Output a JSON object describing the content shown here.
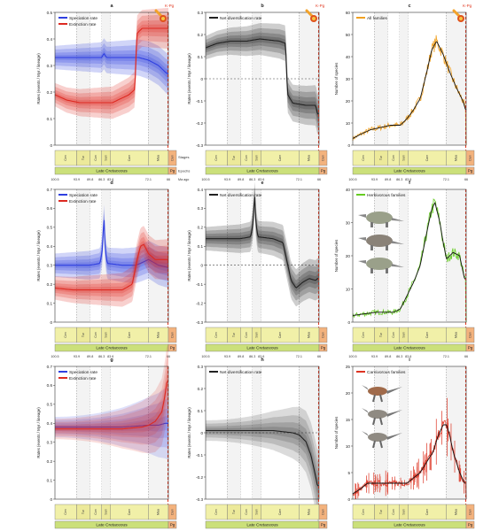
{
  "figure": {
    "period_label": "Late Cretaceous",
    "period_short": "Pg",
    "stages_label": "Stages",
    "epochs_label": "Epochs",
    "ma_label": "Ma ago",
    "kpg_label": "K-Pg",
    "stages": [
      "Cen",
      "Tur",
      "Con",
      "San",
      "Cam",
      "Maa",
      "Dan"
    ],
    "time_ticks": [
      "100.5",
      "93.9",
      "89.8",
      "86.3",
      "83.6",
      "72.1",
      "66"
    ]
  },
  "colors": {
    "speciation": "#2f3fe0",
    "extinction": "#dd2a22",
    "net": "#222222",
    "all": "#f0a020",
    "herbivore": "#66cc22",
    "carnivore": "#dd3322",
    "kpg_line": "#e23b24",
    "stage_fill": "#f1f0a8",
    "stage_fill_alt": "#ece99a",
    "period_fill": "#cbe07a",
    "pg_fill": "#f3b27d"
  },
  "chart_data": [
    {
      "panel": "a",
      "type": "line",
      "xlim": [
        100.5,
        66
      ],
      "ylim": [
        0,
        0.5
      ],
      "yticks": [
        "0",
        "0.1",
        "0.2",
        "0.3",
        "0.4",
        "0.5"
      ],
      "ylabel": "Rates (events / Myr / lineage)",
      "series": [
        {
          "name": "Speciation rate",
          "color_key": "speciation",
          "x": [
            100.5,
            95,
            88,
            86.3,
            85.6,
            84.8,
            80,
            75,
            72,
            69,
            66.5
          ],
          "y": [
            0.33,
            0.33,
            0.33,
            0.33,
            0.345,
            0.33,
            0.33,
            0.33,
            0.32,
            0.3,
            0.27
          ]
        },
        {
          "name": "Extinction rate",
          "color_key": "extinction",
          "x": [
            100.5,
            97,
            93,
            88,
            83,
            78,
            76.2,
            75.6,
            74,
            70,
            66.5
          ],
          "y": [
            0.19,
            0.17,
            0.16,
            0.16,
            0.16,
            0.19,
            0.21,
            0.42,
            0.44,
            0.44,
            0.44
          ]
        }
      ]
    },
    {
      "panel": "b",
      "type": "line",
      "xlim": [
        100.5,
        66
      ],
      "ylim": [
        -0.3,
        0.3
      ],
      "yticks": [
        "-0.3",
        "-0.2",
        "-0.1",
        "0",
        "0.1",
        "0.2",
        "0.3"
      ],
      "ylabel": "Rates (events / Myr / lineage)",
      "series": [
        {
          "name": "Net diversification rate",
          "color_key": "net",
          "x": [
            100.5,
            97,
            93,
            88,
            84,
            78,
            76.2,
            75.6,
            74,
            70,
            67,
            66.5
          ],
          "y": [
            0.14,
            0.16,
            0.17,
            0.17,
            0.18,
            0.17,
            0.16,
            -0.07,
            -0.11,
            -0.12,
            -0.12,
            -0.16
          ]
        }
      ]
    },
    {
      "panel": "c",
      "type": "line",
      "xlim": [
        100.5,
        66
      ],
      "ylim": [
        0,
        60
      ],
      "yticks": [
        "0",
        "10",
        "20",
        "30",
        "40",
        "50",
        "60"
      ],
      "ylabel": "Number of species",
      "series": [
        {
          "name": "All families",
          "color_key": "all",
          "x": [
            100.5,
            98,
            95,
            92,
            89,
            86,
            84,
            82,
            80,
            78,
            76.5,
            75,
            73,
            71,
            69,
            67,
            66.2
          ],
          "y": [
            3,
            5,
            7,
            8,
            9,
            9,
            12,
            16,
            21,
            33,
            43,
            47,
            41,
            33,
            26,
            20,
            16
          ]
        }
      ]
    },
    {
      "panel": "d",
      "type": "line",
      "xlim": [
        100.5,
        66
      ],
      "ylim": [
        0,
        0.7
      ],
      "yticks": [
        "0",
        "0.1",
        "0.2",
        "0.3",
        "0.4",
        "0.5",
        "0.6",
        "0.7"
      ],
      "ylabel": "Rates (events / Myr / lineage)",
      "series": [
        {
          "name": "Speciation rate",
          "color_key": "speciation",
          "x": [
            100.5,
            95,
            90,
            86.8,
            86.1,
            85.6,
            85.2,
            84.6,
            80,
            76,
            74.5,
            72,
            69,
            66.5
          ],
          "y": [
            0.3,
            0.3,
            0.3,
            0.31,
            0.38,
            0.56,
            0.38,
            0.31,
            0.3,
            0.3,
            0.31,
            0.33,
            0.3,
            0.29
          ]
        },
        {
          "name": "Extinction rate",
          "color_key": "extinction",
          "x": [
            100.5,
            95,
            90,
            84,
            80,
            77,
            75.5,
            74.5,
            73.5,
            72,
            70,
            68,
            66.5
          ],
          "y": [
            0.18,
            0.17,
            0.17,
            0.17,
            0.17,
            0.2,
            0.33,
            0.4,
            0.41,
            0.36,
            0.33,
            0.33,
            0.33
          ]
        }
      ]
    },
    {
      "panel": "e",
      "type": "line",
      "xlim": [
        100.5,
        66
      ],
      "ylim": [
        -0.3,
        0.4
      ],
      "yticks": [
        "-0.3",
        "-0.2",
        "-0.1",
        "0",
        "0.1",
        "0.2",
        "0.3",
        "0.4"
      ],
      "ylabel": "Rates (events / Myr / lineage)",
      "series": [
        {
          "name": "Net diversification rate",
          "color_key": "net",
          "x": [
            100.5,
            95,
            90,
            86.8,
            86.1,
            85.6,
            85.2,
            84.6,
            80,
            77,
            75.5,
            74.5,
            73,
            71,
            69,
            67,
            66.5
          ],
          "y": [
            0.14,
            0.14,
            0.14,
            0.15,
            0.22,
            0.38,
            0.22,
            0.15,
            0.14,
            0.12,
            0.0,
            -0.08,
            -0.12,
            -0.09,
            -0.07,
            -0.08,
            -0.07
          ]
        }
      ]
    },
    {
      "panel": "f",
      "type": "line",
      "xlim": [
        100.5,
        66
      ],
      "ylim": [
        0,
        40
      ],
      "yticks": [
        "0",
        "10",
        "20",
        "30",
        "40"
      ],
      "ylabel": "Number of species",
      "series": [
        {
          "name": "Herbivorous families",
          "color_key": "herbivore",
          "x": [
            100.5,
            97,
            93,
            90,
            88,
            86,
            84,
            82,
            80,
            78,
            76.5,
            75.5,
            74,
            73,
            72,
            71,
            70,
            68,
            66.5
          ],
          "y": [
            2,
            2.5,
            3,
            3,
            3,
            4,
            8,
            12,
            17,
            27,
            34,
            36,
            30,
            24,
            19,
            20,
            21,
            20,
            13
          ]
        }
      ]
    },
    {
      "panel": "g",
      "type": "line",
      "xlim": [
        100.5,
        66
      ],
      "ylim": [
        0,
        0.7
      ],
      "yticks": [
        "0",
        "0.1",
        "0.2",
        "0.3",
        "0.4",
        "0.5",
        "0.6",
        "0.7"
      ],
      "ylabel": "Rates (events / Myr / lineage)",
      "series": [
        {
          "name": "Speciation rate",
          "color_key": "speciation",
          "x": [
            100.5,
            90,
            80,
            72,
            69,
            67,
            66.5
          ],
          "y": [
            0.38,
            0.38,
            0.38,
            0.39,
            0.39,
            0.4,
            0.4
          ]
        },
        {
          "name": "Extinction rate",
          "color_key": "extinction",
          "x": [
            100.5,
            90,
            80,
            74,
            72,
            70,
            68,
            67,
            66.5
          ],
          "y": [
            0.37,
            0.37,
            0.37,
            0.38,
            0.39,
            0.41,
            0.46,
            0.55,
            0.62
          ]
        }
      ]
    },
    {
      "panel": "h",
      "type": "line",
      "xlim": [
        100.5,
        66
      ],
      "ylim": [
        -0.3,
        0.3
      ],
      "yticks": [
        "-0.3",
        "-0.2",
        "-0.1",
        "0",
        "0.1",
        "0.2",
        "0.3"
      ],
      "ylabel": "Rates (events / Myr / lineage)",
      "series": [
        {
          "name": "Net diversification rate",
          "color_key": "net",
          "x": [
            100.5,
            90,
            80,
            74,
            72,
            70,
            68.5,
            67,
            66.5
          ],
          "y": [
            0.01,
            0.01,
            0.01,
            0.0,
            -0.01,
            -0.04,
            -0.1,
            -0.2,
            -0.24
          ]
        }
      ]
    },
    {
      "panel": "i",
      "type": "line",
      "xlim": [
        100.5,
        66
      ],
      "ylim": [
        0,
        25
      ],
      "yticks": [
        "0",
        "5",
        "10",
        "15",
        "20",
        "25"
      ],
      "ylabel": "Number of species",
      "series": [
        {
          "name": "Carnivorous families",
          "color_key": "carnivore",
          "x": [
            100.5,
            98,
            96,
            93,
            90,
            88,
            86,
            84,
            82,
            80,
            78,
            76,
            74.5,
            73,
            72,
            71,
            70,
            68,
            66.5
          ],
          "y": [
            1,
            2,
            3,
            3,
            3,
            3,
            3,
            3,
            4,
            5,
            7,
            9,
            12,
            14,
            14,
            12,
            9,
            5,
            3
          ]
        }
      ]
    }
  ]
}
